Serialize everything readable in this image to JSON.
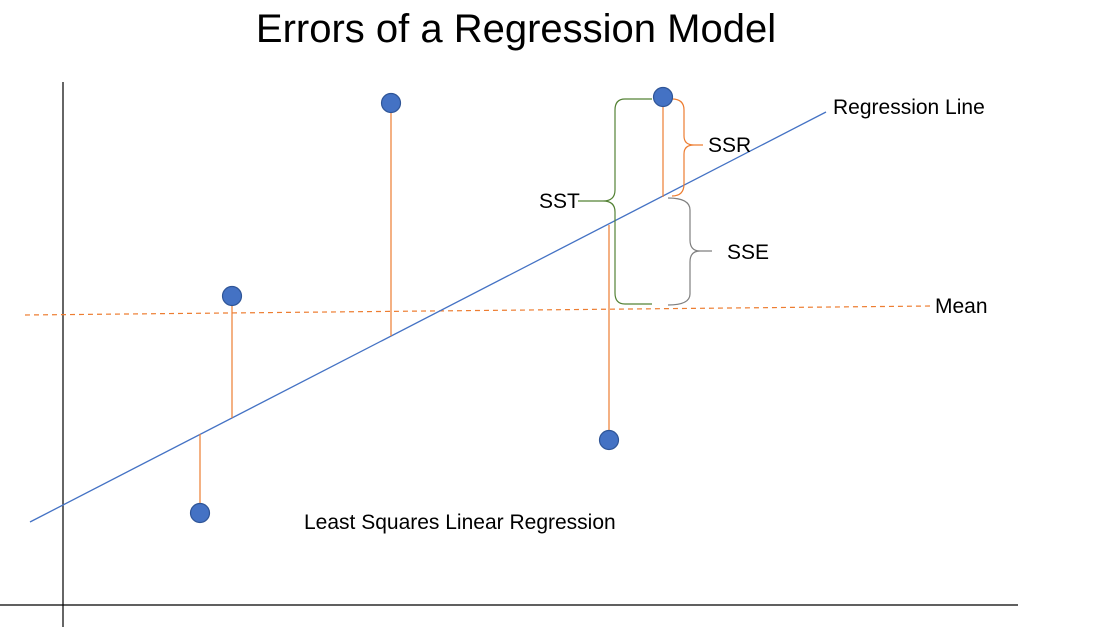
{
  "title": "Errors of a Regression Model",
  "labels": {
    "regression_line": "Regression Line",
    "mean": "Mean",
    "ssr": "SSR",
    "sse": "SSE",
    "sst": "SST",
    "caption": "Least Squares Linear Regression"
  },
  "colors": {
    "regression_line": "#4472c4",
    "mean_line": "#ed7d31",
    "residual": "#ed7d31",
    "point_fill": "#4472c4",
    "point_stroke": "#2f5597",
    "sst_bracket": "#548235",
    "ssr_bracket": "#ed7d31",
    "sse_bracket": "#7f7f7f",
    "axis": "#000000"
  }
}
